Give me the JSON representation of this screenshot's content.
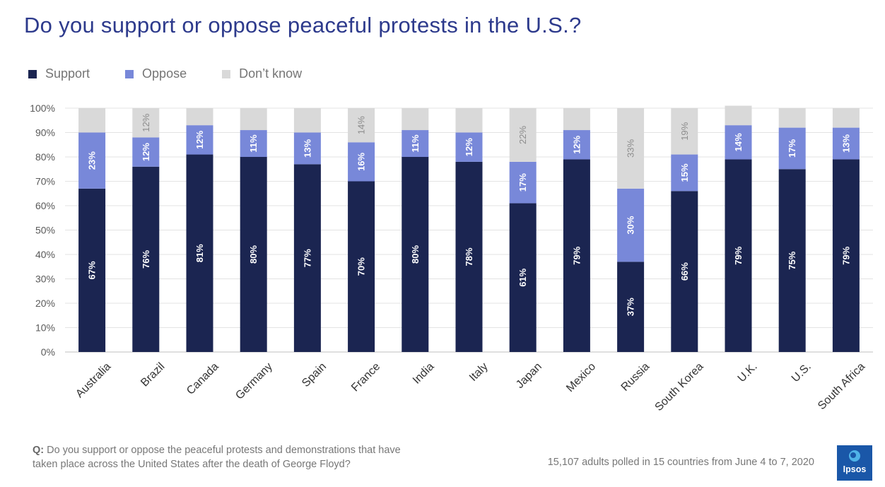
{
  "header": {
    "title": "Do you support or oppose peaceful protests in the U.S.?"
  },
  "legend": {
    "support": "Support",
    "oppose": "Oppose",
    "dont_know": "Don’t know"
  },
  "colors": {
    "support": "#1b2551",
    "oppose": "#7888d9",
    "dont_know": "#d9d9d9",
    "title": "#2d3a8c",
    "logo": "#1a57a8"
  },
  "chart_data": {
    "type": "bar",
    "stacked": true,
    "categories": [
      "Australia",
      "Brazil",
      "Canada",
      "Germany",
      "Spain",
      "France",
      "India",
      "Italy",
      "Japan",
      "Mexico",
      "Russia",
      "South Korea",
      "U.K.",
      "U.S.",
      "South Africa"
    ],
    "series": [
      {
        "name": "Support",
        "values": [
          67,
          76,
          81,
          80,
          77,
          70,
          80,
          78,
          61,
          79,
          37,
          66,
          79,
          75,
          79
        ]
      },
      {
        "name": "Oppose",
        "values": [
          23,
          12,
          12,
          11,
          13,
          16,
          11,
          12,
          17,
          12,
          30,
          15,
          14,
          17,
          13
        ]
      },
      {
        "name": "Don’t know",
        "values": [
          10,
          12,
          7,
          9,
          10,
          14,
          9,
          10,
          22,
          9,
          33,
          19,
          8,
          8,
          8
        ]
      }
    ],
    "data_labels": {
      "Support": [
        "67%",
        "76%",
        "81%",
        "80%",
        "77%",
        "70%",
        "80%",
        "78%",
        "61%",
        "79%",
        "37%",
        "66%",
        "79%",
        "75%",
        "79%"
      ],
      "Oppose": [
        "23%",
        "12%",
        "12%",
        "11%",
        "13%",
        "16%",
        "11%",
        "12%",
        "17%",
        "12%",
        "30%",
        "15%",
        "14%",
        "17%",
        "13%"
      ],
      "Don’t know": [
        "",
        "12%",
        "",
        "",
        "",
        "14%",
        "",
        "",
        "22%",
        "",
        "33%",
        "19%",
        "",
        "",
        ""
      ]
    },
    "y_ticks": [
      "0%",
      "10%",
      "20%",
      "30%",
      "40%",
      "50%",
      "60%",
      "70%",
      "80%",
      "90%",
      "100%"
    ],
    "ylim": [
      0,
      100
    ],
    "grid": true,
    "legend_position": "top-left"
  },
  "footer": {
    "question_prefix": "Q:",
    "question": "Do you support or oppose the peaceful protests and demonstrations that have taken place across the United States after the death of George Floyd?",
    "note": "15,107 adults polled in 15 countries from June 4 to 7, 2020"
  },
  "logo": {
    "text": "Ipsos"
  }
}
